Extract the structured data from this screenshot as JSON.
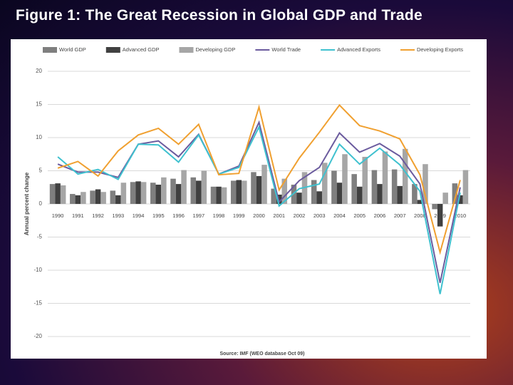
{
  "title": "Figure 1: The Great Recession in Global GDP and Trade",
  "chart_data": {
    "type": "combo",
    "ylabel": "Annual percent change",
    "source": "Source: IMF (WEO database Oct 09)",
    "categories": [
      "1990",
      "1991",
      "1992",
      "1993",
      "1994",
      "1995",
      "1996",
      "1997",
      "1998",
      "1999",
      "2000",
      "2001",
      "2002",
      "2003",
      "2004",
      "2005",
      "2006",
      "2007",
      "2008",
      "2009",
      "2010"
    ],
    "ylim": [
      -20,
      20
    ],
    "yticks": [
      -20,
      -15,
      -10,
      -5,
      0,
      5,
      10,
      15,
      20
    ],
    "grid": true,
    "series": [
      {
        "name": "World GDP",
        "type": "bar",
        "color": "#7f7f7f",
        "values": [
          3.0,
          1.5,
          2.0,
          2.0,
          3.3,
          3.2,
          3.8,
          4.0,
          2.6,
          3.5,
          4.8,
          2.3,
          2.9,
          3.6,
          5.0,
          4.5,
          5.1,
          5.2,
          3.0,
          -0.8,
          3.1
        ]
      },
      {
        "name": "Advanced GDP",
        "type": "bar",
        "color": "#404040",
        "values": [
          3.1,
          1.3,
          2.2,
          1.3,
          3.4,
          2.9,
          3.0,
          3.5,
          2.6,
          3.6,
          4.2,
          1.4,
          1.7,
          1.9,
          3.2,
          2.6,
          3.0,
          2.7,
          0.6,
          -3.4,
          1.3
        ]
      },
      {
        "name": "Developing GDP",
        "type": "bar",
        "color": "#a6a6a6",
        "values": [
          2.8,
          1.8,
          1.8,
          3.2,
          3.3,
          4.0,
          5.1,
          5.0,
          2.5,
          3.5,
          5.9,
          3.8,
          4.8,
          6.2,
          7.5,
          7.1,
          7.9,
          8.3,
          6.0,
          1.7,
          5.1
        ]
      },
      {
        "name": "World Trade",
        "type": "line",
        "color": "#6b5b9e",
        "values": [
          6.0,
          4.8,
          4.8,
          4.0,
          9.0,
          9.5,
          7.1,
          10.5,
          4.5,
          5.7,
          12.3,
          0.3,
          3.5,
          5.5,
          10.7,
          7.8,
          9.1,
          7.2,
          3.0,
          -11.9,
          2.5
        ]
      },
      {
        "name": "Advanced Exports",
        "type": "line",
        "color": "#3fc1cf",
        "values": [
          7.1,
          4.5,
          5.2,
          3.7,
          9.0,
          8.9,
          6.3,
          10.4,
          4.5,
          5.5,
          11.6,
          -0.3,
          2.3,
          3.0,
          9.0,
          6.0,
          8.4,
          5.9,
          1.9,
          -13.6,
          1.7
        ]
      },
      {
        "name": "Developing Exports",
        "type": "line",
        "color": "#f0a030",
        "values": [
          5.4,
          6.4,
          4.2,
          8.0,
          10.4,
          11.4,
          9.0,
          12.0,
          4.4,
          4.6,
          14.6,
          2.1,
          6.9,
          10.8,
          14.9,
          11.8,
          11.0,
          9.8,
          4.4,
          -7.3,
          3.6
        ]
      }
    ]
  }
}
